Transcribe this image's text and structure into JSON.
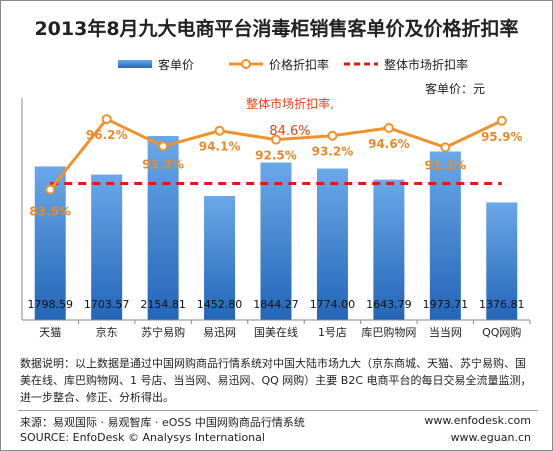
{
  "title": "2013年8月九大电商平台消毒柜销售客单价及价格折扣率",
  "legend": {
    "bar": "客单价",
    "line": "价格折扣率",
    "dashed": "整体市场折扣率"
  },
  "unit_label": "客单价：元",
  "annotation": {
    "line1": "整体市场折扣率,",
    "line2": "84.6%"
  },
  "colors": {
    "bar_top": "#6aa8e8",
    "bar_bottom": "#2366b8",
    "line": "#f0922a",
    "line_label": "#e8892a",
    "dashed": "#e01818",
    "annotation": "#e8401a"
  },
  "chart_data": {
    "type": "bar",
    "categories": [
      "天猫",
      "京东",
      "苏宁易购",
      "易迅网",
      "国美在线",
      "1号店",
      "库巴购物网",
      "当当网",
      "QQ网购"
    ],
    "series": [
      {
        "name": "客单价",
        "type": "bar",
        "values": [
          1798.59,
          1703.57,
          2154.81,
          1452.8,
          1844.27,
          1774.0,
          1643.79,
          1973.71,
          1376.81
        ],
        "labels": [
          "1798.59",
          "1703.57",
          "2154.81",
          "1452.80",
          "1844.27",
          "1774.00",
          "1643.79",
          "1973.71",
          "1376.81"
        ]
      },
      {
        "name": "价格折扣率",
        "type": "line",
        "values": [
          83.5,
          96.2,
          91.3,
          94.1,
          92.5,
          93.2,
          94.6,
          91.1,
          95.9
        ],
        "labels": [
          "83.5%",
          "96.2%",
          "91.3%",
          "94.1%",
          "92.5%",
          "93.2%",
          "94.6%",
          "91.1%",
          "95.9%"
        ]
      },
      {
        "name": "整体市场折扣率",
        "type": "reference_line",
        "value": 84.6
      }
    ],
    "ylim_bar": [
      0,
      2600
    ],
    "ylim_line": [
      60,
      100
    ]
  },
  "note": "数据说明：以上数据是通过中国网购商品行情系统对中国大陆市场九大（京东商城、天猫、苏宁易购、国美在线、库巴购物网、1 号店、当当网、易迅网、QQ 网购）主要 B2C 电商平台的每日交易全流量监测，进一步整合、修正、分析得出。",
  "footer": {
    "source_cn": "来源：易观国际 · 易观智库 · eOSS 中国网购商品行情系统",
    "source_en": "SOURCE: EnfoDesk © Analysys International",
    "url1": "www.enfodesk.com",
    "url2": "www.eguan.cn"
  }
}
